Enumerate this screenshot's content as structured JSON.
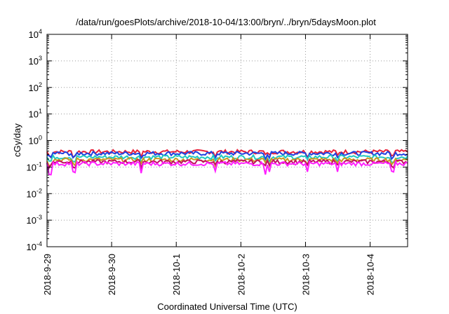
{
  "chart_data": {
    "type": "line",
    "title": "/data/run/goesPlots/archive/2018-10-04/13:00/bryn/../bryn/5daysMoon.plot",
    "xlabel": "Coordinated Universal Time (UTC)",
    "ylabel": "cGy/day",
    "y_scale": "log",
    "ylim": [
      0.0001,
      10000
    ],
    "y_ticks": [
      {
        "value": 0.0001,
        "base": "10",
        "exp": "-4"
      },
      {
        "value": 0.001,
        "base": "10",
        "exp": "-3"
      },
      {
        "value": 0.01,
        "base": "10",
        "exp": "-2"
      },
      {
        "value": 0.1,
        "base": "10",
        "exp": "-1"
      },
      {
        "value": 1,
        "base": "10",
        "exp": "0"
      },
      {
        "value": 10,
        "base": "10",
        "exp": "1"
      },
      {
        "value": 100,
        "base": "10",
        "exp": "2"
      },
      {
        "value": 1000,
        "base": "10",
        "exp": "3"
      },
      {
        "value": 10000,
        "base": "10",
        "exp": "4"
      }
    ],
    "x_ticks": [
      "2018-9-29",
      "2018-9-30",
      "2018-10-1",
      "2018-10-2",
      "2018-10-3",
      "2018-10-4"
    ],
    "xlim_days": [
      0,
      5.58
    ],
    "grid": true,
    "series": [
      {
        "color": "#e8213b",
        "level": 0.38
      },
      {
        "color": "#2040e0",
        "level": 0.33
      },
      {
        "color": "#20c8c0",
        "level": 0.24
      },
      {
        "color": "#c89a20",
        "level": 0.19
      },
      {
        "color": "#c01060",
        "level": 0.16
      },
      {
        "color": "#ff20ff",
        "level": 0.135
      }
    ]
  }
}
